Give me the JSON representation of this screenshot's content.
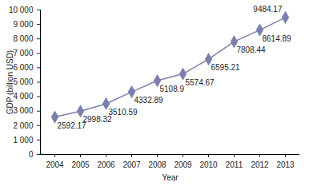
{
  "chart_data": {
    "type": "line",
    "x_label": "Year",
    "y_label": "GDP (billion USD)",
    "categories": [
      "2004",
      "2005",
      "2006",
      "2007",
      "2008",
      "2009",
      "2010",
      "2011",
      "2012",
      "2013"
    ],
    "values": [
      2592.17,
      2998.32,
      3510.59,
      4332.89,
      5108.9,
      5574.67,
      6595.21,
      7808.44,
      8614.89,
      9484.17
    ],
    "color": "#7b7fae",
    "marker": "diamond",
    "data_labels": true,
    "grid": false,
    "ylim": [
      0,
      10000
    ],
    "yticks": [
      0,
      {
        "value": 1000,
        "label": "1 000"
      },
      {
        "value": 2000,
        "label": "2 000"
      },
      {
        "value": 3000,
        "label": "3 000"
      },
      {
        "value": 4000,
        "label": "4 000"
      },
      {
        "value": 5000,
        "label": "5 000"
      },
      {
        "value": 6000,
        "label": "6 000"
      },
      {
        "value": 7000,
        "label": "7 000"
      },
      {
        "value": 8000,
        "label": "8 000"
      },
      {
        "value": 9000,
        "label": "9 000"
      },
      {
        "value": 10000,
        "label": "10 000"
      }
    ]
  }
}
